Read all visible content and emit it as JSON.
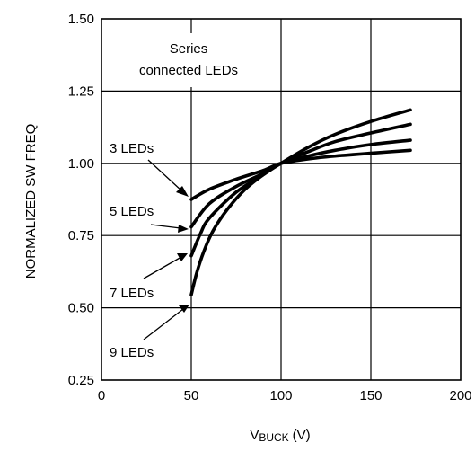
{
  "chart_data": {
    "type": "line",
    "xlabel_main": "V",
    "xlabel_sub": "BUCK",
    "xlabel_unit": "(V)",
    "ylabel": "NORMALIZED SW FREQ",
    "xlim": [
      0,
      200
    ],
    "ylim": [
      0.25,
      1.5
    ],
    "x_ticks": [
      "0",
      "50",
      "100",
      "150",
      "200"
    ],
    "y_ticks": [
      "0.25",
      "0.50",
      "0.75",
      "1.00",
      "1.25",
      "1.50"
    ],
    "grid": true,
    "annotation_box": {
      "line1": "Series",
      "line2": "connected LEDs"
    },
    "series": [
      {
        "name": "3 LEDs",
        "x": [
          50,
          60,
          75,
          90,
          100,
          115,
          130,
          150,
          172
        ],
        "y": [
          0.875,
          0.91,
          0.945,
          0.975,
          1.0,
          1.015,
          1.025,
          1.035,
          1.045
        ]
      },
      {
        "name": "5 LEDs",
        "x": [
          50,
          60,
          75,
          90,
          100,
          115,
          130,
          150,
          172
        ],
        "y": [
          0.78,
          0.86,
          0.92,
          0.965,
          1.0,
          1.025,
          1.045,
          1.065,
          1.08
        ]
      },
      {
        "name": "7 LEDs",
        "x": [
          50,
          55,
          60,
          75,
          90,
          100,
          115,
          130,
          150,
          172
        ],
        "y": [
          0.68,
          0.755,
          0.81,
          0.9,
          0.96,
          1.0,
          1.04,
          1.075,
          1.105,
          1.135
        ]
      },
      {
        "name": "9 LEDs",
        "x": [
          50,
          53,
          57,
          62,
          70,
          80,
          90,
          100,
          115,
          130,
          150,
          172
        ],
        "y": [
          0.545,
          0.62,
          0.695,
          0.765,
          0.84,
          0.91,
          0.96,
          1.0,
          1.055,
          1.1,
          1.145,
          1.185
        ]
      }
    ]
  }
}
